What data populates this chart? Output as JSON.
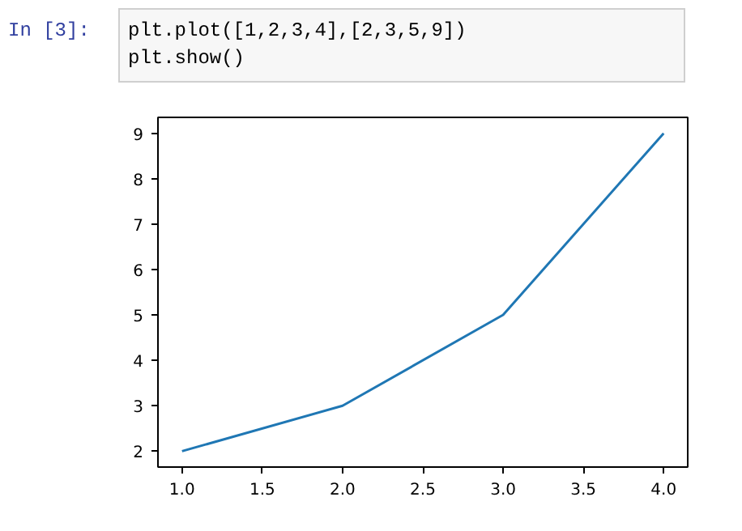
{
  "chart_data": {
    "type": "line",
    "x": [
      1,
      2,
      3,
      4
    ],
    "series": [
      {
        "color": "#1f77b4",
        "values": [
          2,
          3,
          5,
          9
        ]
      }
    ],
    "xlim": [
      0.85,
      4.15
    ],
    "xticks": [
      {
        "value": 1,
        "label": "1.0"
      },
      {
        "value": 1.5,
        "label": "1.5"
      },
      {
        "value": 2,
        "label": "2.0"
      },
      {
        "value": 2.5,
        "label": "2.5"
      },
      {
        "value": 3,
        "label": "3.0"
      },
      {
        "value": 3.5,
        "label": "3.5"
      },
      {
        "value": 4,
        "label": "4.0"
      }
    ],
    "ylim": [
      1.65,
      9.35
    ],
    "yticks": [
      2,
      3,
      4,
      5,
      6,
      7,
      8,
      9
    ],
    "grid": false,
    "marker": "none",
    "line_style": "solid",
    "annotations": [
      "In [3]:",
      "plt.plot([1,2,3,4],[2,3,5,9])",
      "plt.show()"
    ]
  }
}
